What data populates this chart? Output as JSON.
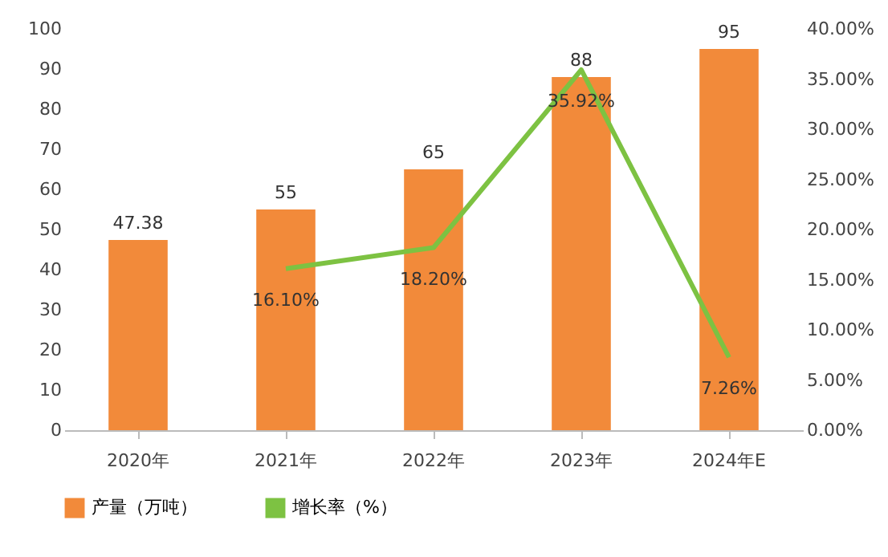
{
  "chart_data": {
    "type": "bar",
    "categories": [
      "2020年",
      "2021年",
      "2022年",
      "2023年",
      "2024年E"
    ],
    "series": [
      {
        "name": "产量（万吨）",
        "color": "#f28a3a",
        "values": [
          47.38,
          55,
          65,
          88,
          95
        ],
        "data_labels": true
      },
      {
        "name": "增长率（%）",
        "type": "line",
        "axis": "y2",
        "color": "#7dc242",
        "values": [
          null,
          16.1,
          18.2,
          35.92,
          7.26
        ],
        "value_labels": [
          null,
          "16.10%",
          "18.20%",
          "35.92%",
          "7.26%"
        ]
      }
    ],
    "ylim": [
      0,
      100
    ],
    "yticks": [
      0,
      10,
      20,
      30,
      40,
      50,
      60,
      70,
      80,
      90,
      100
    ],
    "y2lim": [
      0,
      40
    ],
    "y2ticks": [
      {
        "value": 0,
        "label": "0.00%"
      },
      {
        "value": 5,
        "label": "5.00%"
      },
      {
        "value": 10,
        "label": "10.00%"
      },
      {
        "value": 15,
        "label": "15.00%"
      },
      {
        "value": 20,
        "label": "20.00%"
      },
      {
        "value": 25,
        "label": "25.00%"
      },
      {
        "value": 30,
        "label": "30.00%"
      },
      {
        "value": 35,
        "label": "35.00%"
      },
      {
        "value": 40,
        "label": "40.00%"
      }
    ],
    "grid": false,
    "legend": "bottom",
    "marker": "none",
    "line_style": "solid"
  }
}
